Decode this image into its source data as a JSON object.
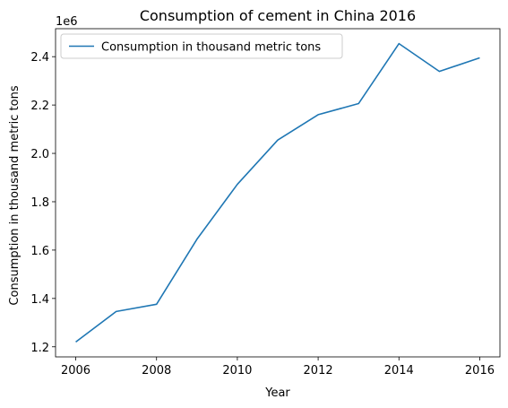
{
  "chart_data": {
    "type": "line",
    "title": "Consumption of cement in China 2016",
    "xlabel": "Year",
    "ylabel": "Consumption in thousand metric tons",
    "y_offset_label": "1e6",
    "x": [
      2006,
      2007,
      2008,
      2009,
      2010,
      2011,
      2012,
      2013,
      2014,
      2015,
      2016
    ],
    "series": [
      {
        "name": "Consumption in thousand metric tons",
        "values": [
          1220000,
          1346000,
          1376000,
          1645000,
          1872000,
          2055000,
          2160000,
          2206000,
          2454000,
          2339000,
          2395000
        ],
        "color": "#1f77b4"
      }
    ],
    "xticks": [
      2006,
      2008,
      2010,
      2012,
      2014,
      2016
    ],
    "xtick_labels": [
      "2006",
      "2008",
      "2010",
      "2012",
      "2014",
      "2016"
    ],
    "yticks": [
      1200000,
      1400000,
      1600000,
      1800000,
      2000000,
      2200000,
      2400000
    ],
    "ytick_labels": [
      "1.2",
      "1.4",
      "1.6",
      "1.8",
      "2.0",
      "2.2",
      "2.4"
    ],
    "xlim": [
      2005.5,
      2016.5
    ],
    "ylim": [
      1158300,
      2515700
    ],
    "grid": false,
    "legend_position": "upper-left"
  }
}
